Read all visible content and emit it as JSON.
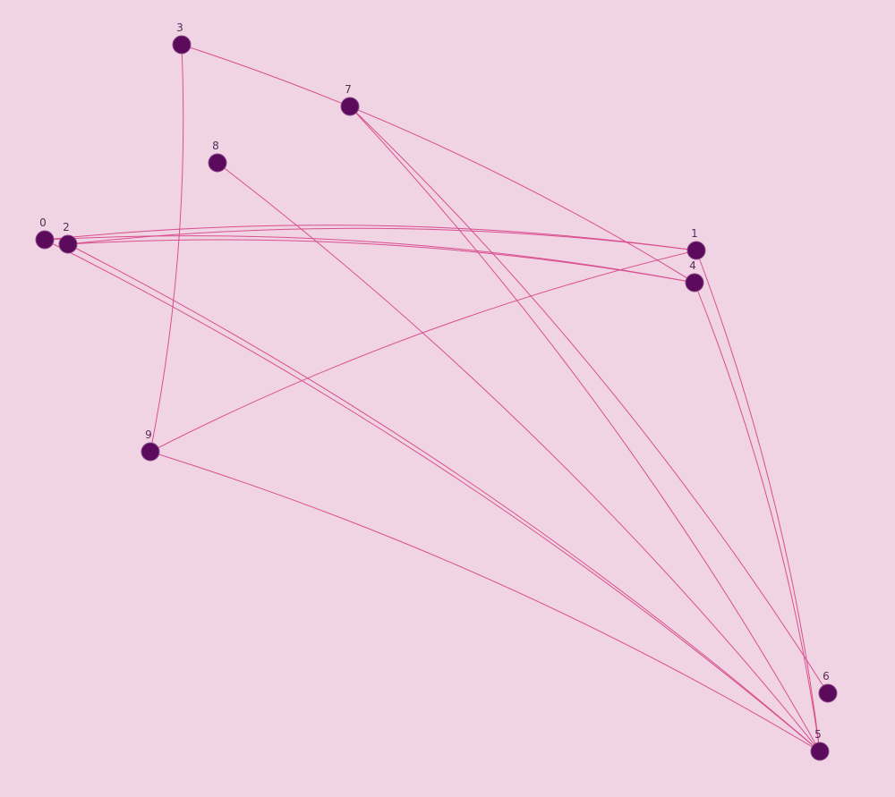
{
  "graph": {
    "background": "#f0d4e4",
    "edge_color": "#d94f8f",
    "node_color": "#5c0a5c",
    "label_color": "#5a2a5a",
    "nodes": [
      {
        "id": "0",
        "label": "0"
      },
      {
        "id": "1",
        "label": "1"
      },
      {
        "id": "2",
        "label": "2"
      },
      {
        "id": "3",
        "label": "3"
      },
      {
        "id": "4",
        "label": "4"
      },
      {
        "id": "5",
        "label": "5"
      },
      {
        "id": "6",
        "label": "6"
      },
      {
        "id": "7",
        "label": "7"
      },
      {
        "id": "8",
        "label": "8"
      },
      {
        "id": "9",
        "label": "9"
      }
    ],
    "edges": [
      {
        "source": "0",
        "target": "1"
      },
      {
        "source": "0",
        "target": "4"
      },
      {
        "source": "0",
        "target": "5"
      },
      {
        "source": "2",
        "target": "1"
      },
      {
        "source": "2",
        "target": "4"
      },
      {
        "source": "2",
        "target": "5"
      },
      {
        "source": "3",
        "target": "4"
      },
      {
        "source": "3",
        "target": "9"
      },
      {
        "source": "7",
        "target": "5"
      },
      {
        "source": "7",
        "target": "6"
      },
      {
        "source": "8",
        "target": "5"
      },
      {
        "source": "9",
        "target": "1"
      },
      {
        "source": "9",
        "target": "5"
      },
      {
        "source": "1",
        "target": "5"
      },
      {
        "source": "4",
        "target": "5"
      }
    ]
  }
}
